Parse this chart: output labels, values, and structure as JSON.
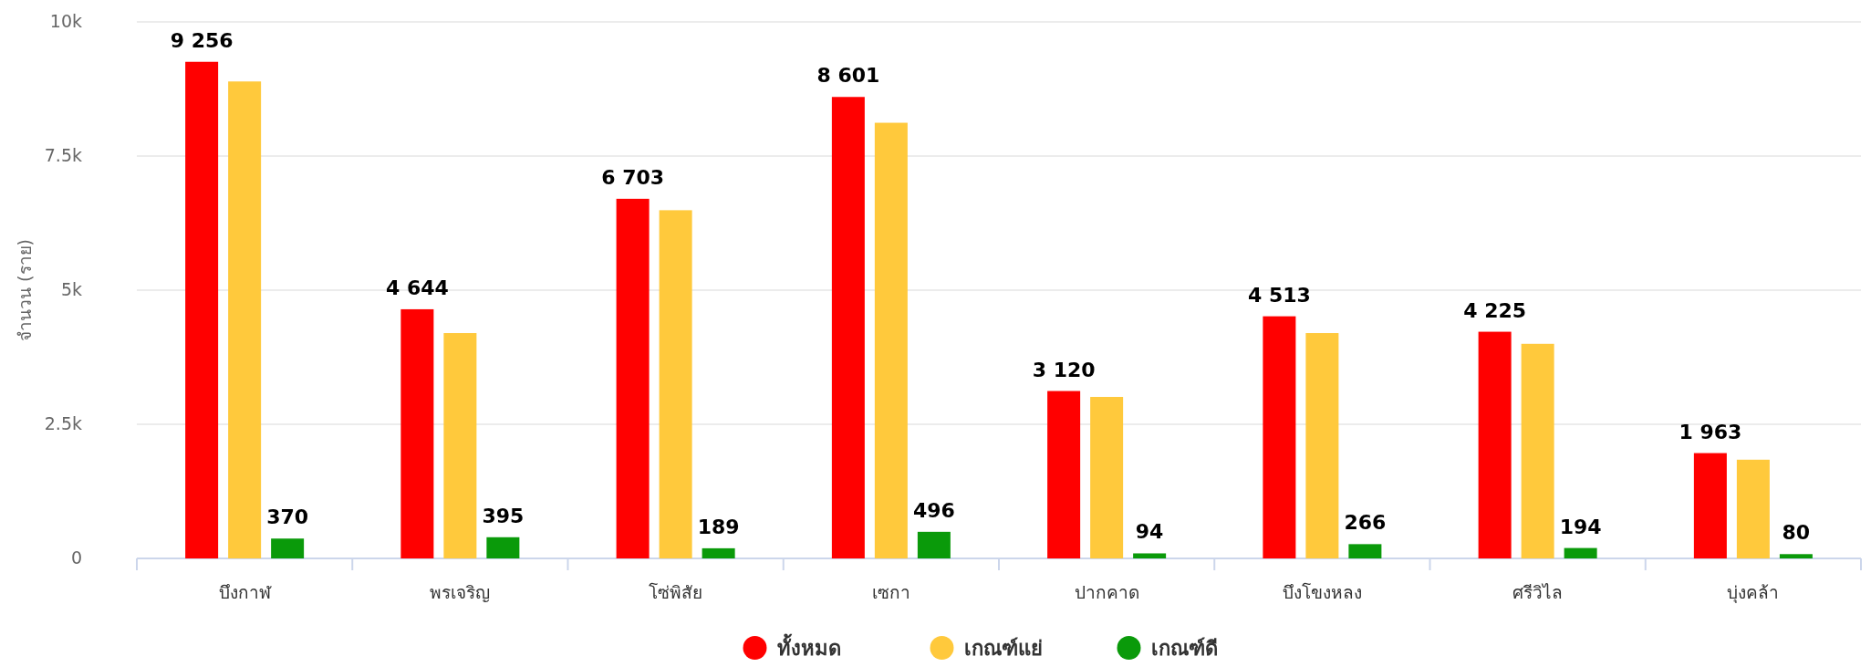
{
  "chart_data": {
    "type": "bar",
    "ylabel": "จำนวน (ราย)",
    "categories": [
      "บึงกาฬ",
      "พรเจริญ",
      "โซ่พิสัย",
      "เซกา",
      "ปากคาด",
      "บึงโขงหลง",
      "ศรีวิไล",
      "บุ่งคล้า"
    ],
    "series": [
      {
        "name": "ทั้งหมด",
        "color": "#ff0000",
        "values": [
          9256,
          4644,
          6703,
          8601,
          3120,
          4513,
          4225,
          1963
        ],
        "value_labels": [
          "9 256",
          "4 644",
          "6 703",
          "8 601",
          "3 120",
          "4 513",
          "4 225",
          "1 963"
        ]
      },
      {
        "name": "เกณฑ์แย่",
        "color": "#ffc93c",
        "values": [
          8890,
          4200,
          6490,
          8120,
          3010,
          4200,
          4000,
          1840
        ]
      },
      {
        "name": "เกณฑ์ดี",
        "color": "#0a9a0a",
        "values": [
          370,
          395,
          189,
          496,
          94,
          266,
          194,
          80
        ],
        "value_labels": [
          "370",
          "395",
          "189",
          "496",
          "94",
          "266",
          "194",
          "80"
        ]
      }
    ],
    "ylim": [
      0,
      10000
    ],
    "yticks": [
      0,
      {
        "value": 2500,
        "label": "2.5k"
      },
      {
        "value": 5000,
        "label": "5k"
      },
      {
        "value": 7500,
        "label": "7.5k"
      },
      {
        "value": 10000,
        "label": "10k"
      }
    ],
    "grid": "y",
    "legend": "bottom"
  }
}
